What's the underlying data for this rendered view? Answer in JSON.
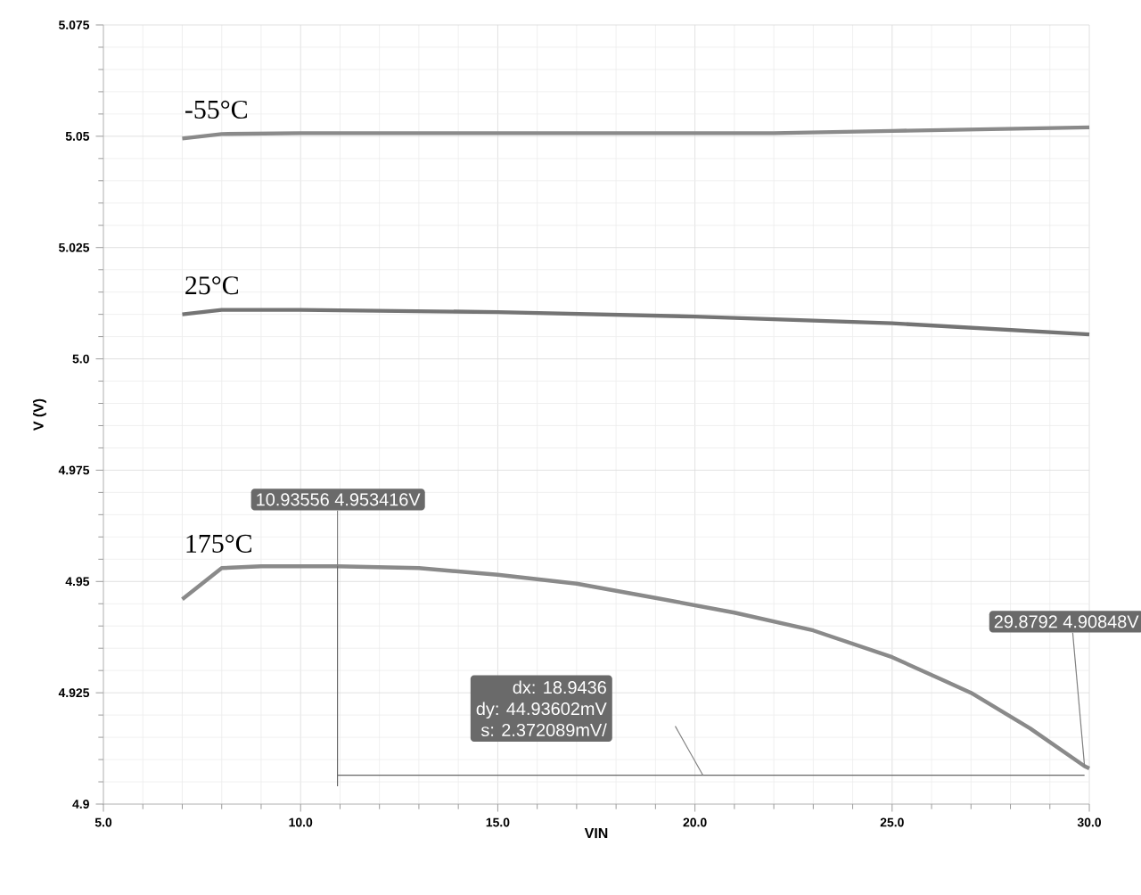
{
  "chart_data": {
    "type": "line",
    "xlabel": "VIN",
    "ylabel": "V (V)",
    "xlim": [
      5,
      30
    ],
    "ylim": [
      4.9,
      5.075
    ],
    "xticks": [
      {
        "value": 5,
        "label": "5.0"
      },
      {
        "value": 10,
        "label": "10.0"
      },
      {
        "value": 15,
        "label": "15.0"
      },
      {
        "value": 20,
        "label": "20.0"
      },
      {
        "value": 25,
        "label": "25.0"
      },
      {
        "value": 30,
        "label": "30.0"
      }
    ],
    "yticks": [
      4.9,
      4.925,
      4.95,
      4.975,
      {
        "value": 5,
        "label": "5.0"
      },
      5.025,
      5.05,
      5.075
    ],
    "grid": true,
    "marker": "none",
    "line_style": "solid",
    "series": [
      {
        "name": "-55°C",
        "color": "#8a8a8a",
        "x": [
          7,
          8,
          10,
          15,
          20,
          22,
          25,
          30
        ],
        "values": [
          5.0495,
          5.0505,
          5.0507,
          5.0507,
          5.0507,
          5.0507,
          5.0512,
          5.052
        ]
      },
      {
        "name": "25°C",
        "color": "#747474",
        "x": [
          7,
          8,
          10,
          15,
          20,
          25,
          30
        ],
        "values": [
          5.01,
          5.011,
          5.011,
          5.0105,
          5.0095,
          5.008,
          5.0055
        ]
      },
      {
        "color": "#666666",
        "x": [
          10.93556,
          29.8792
        ],
        "values": [
          4.9065,
          4.9065
        ]
      },
      {
        "name": "175°C",
        "color": "#8a8a8a",
        "x": [
          7,
          8,
          9,
          10.94,
          13,
          15,
          17,
          19,
          21,
          23,
          25,
          27,
          28.5,
          29.88,
          30
        ],
        "values": [
          4.946,
          4.953,
          4.9534,
          4.9534,
          4.953,
          4.9515,
          4.9495,
          4.9463,
          4.943,
          4.939,
          4.933,
          4.925,
          4.917,
          4.9085,
          4.908
        ]
      }
    ],
    "annotations": [
      {
        "text": "10.93556 4.953416V",
        "x": 10.93556,
        "y": 4.953416
      },
      {
        "text": "29.8792 4.90848V",
        "x": 29.8792,
        "y": 4.90848
      },
      "dx: 18.9436",
      "dy: 44.93602mV",
      "s: 2.372089mV/"
    ]
  }
}
